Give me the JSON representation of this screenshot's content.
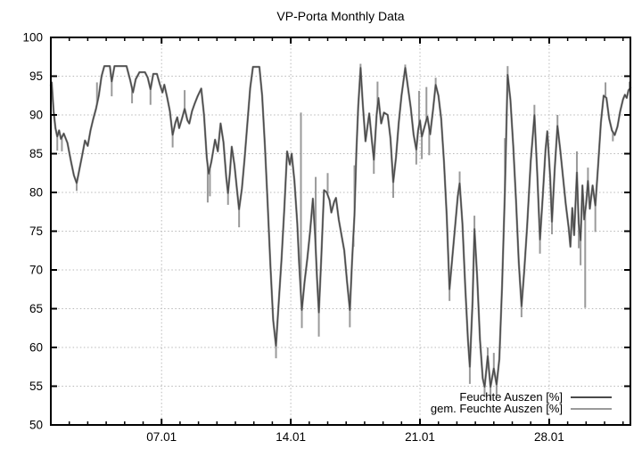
{
  "chart_data": {
    "type": "line",
    "title": "VP-Porta Monthly Data",
    "xlim_days": [
      1,
      32.4
    ],
    "ylim": [
      50,
      100
    ],
    "x_axis": {
      "minor_tick_every_days": 1,
      "major_ticks": [
        {
          "day": 7,
          "label": "07.01"
        },
        {
          "day": 14,
          "label": "14.01"
        },
        {
          "day": 21,
          "label": "21.01"
        },
        {
          "day": 28,
          "label": "28.01"
        }
      ]
    },
    "y_axis": {
      "tick_step": 5,
      "ticks": [
        50,
        55,
        60,
        65,
        70,
        75,
        80,
        85,
        90,
        95,
        100
      ],
      "unit": "%"
    },
    "grid": {
      "shown": true,
      "color": "#b9b9b9",
      "style": "dotted"
    },
    "border_color": "#000000",
    "background_color": "#ffffff",
    "legend": {
      "position": "inside-bottom-right",
      "entries": [
        {
          "label": "Feuchte Auszen [%]",
          "color": "#4a4a4a"
        },
        {
          "label": "gem. Feuchte Auszen [%]",
          "color": "#9a9a9a"
        }
      ]
    },
    "series": [
      {
        "name": "Feuchte Auszen [%]",
        "color": "#4a4a4a",
        "line_width": 1.4,
        "points_day_value": [
          [
            1.0,
            93.8
          ],
          [
            1.05,
            94.2
          ],
          [
            1.15,
            90.5
          ],
          [
            1.25,
            88.3
          ],
          [
            1.35,
            87.2
          ],
          [
            1.45,
            88.0
          ],
          [
            1.55,
            86.9
          ],
          [
            1.7,
            87.6
          ],
          [
            1.9,
            86.4
          ],
          [
            2.1,
            83.9
          ],
          [
            2.25,
            82.2
          ],
          [
            2.4,
            81.2
          ],
          [
            2.55,
            83.0
          ],
          [
            2.7,
            84.8
          ],
          [
            2.85,
            86.7
          ],
          [
            3.0,
            86.0
          ],
          [
            3.15,
            88.0
          ],
          [
            3.3,
            89.5
          ],
          [
            3.45,
            90.8
          ],
          [
            3.6,
            92.5
          ],
          [
            3.75,
            95.0
          ],
          [
            3.9,
            96.3
          ],
          [
            4.2,
            96.3
          ],
          [
            4.3,
            94.3
          ],
          [
            4.45,
            96.3
          ],
          [
            5.1,
            96.3
          ],
          [
            5.3,
            94.5
          ],
          [
            5.45,
            92.9
          ],
          [
            5.6,
            94.6
          ],
          [
            5.8,
            95.5
          ],
          [
            6.1,
            95.5
          ],
          [
            6.25,
            94.8
          ],
          [
            6.4,
            93.3
          ],
          [
            6.55,
            95.3
          ],
          [
            6.75,
            95.3
          ],
          [
            6.9,
            94.0
          ],
          [
            7.05,
            92.9
          ],
          [
            7.15,
            93.9
          ],
          [
            7.3,
            92.3
          ],
          [
            7.45,
            90.5
          ],
          [
            7.6,
            87.4
          ],
          [
            7.75,
            89.0
          ],
          [
            7.85,
            89.7
          ],
          [
            7.95,
            88.3
          ],
          [
            8.1,
            89.5
          ],
          [
            8.25,
            90.8
          ],
          [
            8.4,
            89.3
          ],
          [
            8.5,
            88.9
          ],
          [
            8.65,
            90.5
          ],
          [
            8.8,
            91.5
          ],
          [
            8.95,
            92.4
          ],
          [
            9.15,
            93.4
          ],
          [
            9.3,
            90.0
          ],
          [
            9.45,
            84.5
          ],
          [
            9.55,
            82.4
          ],
          [
            9.7,
            84.0
          ],
          [
            9.9,
            86.8
          ],
          [
            10.05,
            85.3
          ],
          [
            10.2,
            88.9
          ],
          [
            10.35,
            86.5
          ],
          [
            10.5,
            82.0
          ],
          [
            10.6,
            79.9
          ],
          [
            10.7,
            82.5
          ],
          [
            10.8,
            85.9
          ],
          [
            10.95,
            83.5
          ],
          [
            11.1,
            80.0
          ],
          [
            11.2,
            77.8
          ],
          [
            11.35,
            80.5
          ],
          [
            11.5,
            84.5
          ],
          [
            11.65,
            89.0
          ],
          [
            11.8,
            93.5
          ],
          [
            11.95,
            96.2
          ],
          [
            12.3,
            96.2
          ],
          [
            12.45,
            92.5
          ],
          [
            12.6,
            86.0
          ],
          [
            12.75,
            78.5
          ],
          [
            12.9,
            70.5
          ],
          [
            13.05,
            63.5
          ],
          [
            13.2,
            60.2
          ],
          [
            13.35,
            66.0
          ],
          [
            13.5,
            71.5
          ],
          [
            13.65,
            78.0
          ],
          [
            13.8,
            85.3
          ],
          [
            13.95,
            83.6
          ],
          [
            14.05,
            85.0
          ],
          [
            14.2,
            81.5
          ],
          [
            14.35,
            76.0
          ],
          [
            14.45,
            71.0
          ],
          [
            14.6,
            64.8
          ],
          [
            14.75,
            68.5
          ],
          [
            14.9,
            71.5
          ],
          [
            15.05,
            75.0
          ],
          [
            15.2,
            79.2
          ],
          [
            15.32,
            74.5
          ],
          [
            15.42,
            69.0
          ],
          [
            15.52,
            64.5
          ],
          [
            15.65,
            71.5
          ],
          [
            15.8,
            80.3
          ],
          [
            15.95,
            80.0
          ],
          [
            16.1,
            79.0
          ],
          [
            16.2,
            77.4
          ],
          [
            16.35,
            78.8
          ],
          [
            16.45,
            79.3
          ],
          [
            16.6,
            76.5
          ],
          [
            16.75,
            74.5
          ],
          [
            16.9,
            72.5
          ],
          [
            17.05,
            68.5
          ],
          [
            17.2,
            64.8
          ],
          [
            17.32,
            71.0
          ],
          [
            17.45,
            77.0
          ],
          [
            17.55,
            85.0
          ],
          [
            17.65,
            91.0
          ],
          [
            17.78,
            96.1
          ],
          [
            17.9,
            91.5
          ],
          [
            18.05,
            86.6
          ],
          [
            18.25,
            90.2
          ],
          [
            18.4,
            86.5
          ],
          [
            18.5,
            84.2
          ],
          [
            18.65,
            90.0
          ],
          [
            18.75,
            92.2
          ],
          [
            18.9,
            88.9
          ],
          [
            19.05,
            90.3
          ],
          [
            19.25,
            90.0
          ],
          [
            19.4,
            87.0
          ],
          [
            19.55,
            81.3
          ],
          [
            19.7,
            84.5
          ],
          [
            19.85,
            89.0
          ],
          [
            20.0,
            92.5
          ],
          [
            20.2,
            96.1
          ],
          [
            20.35,
            93.5
          ],
          [
            20.5,
            90.9
          ],
          [
            20.65,
            87.5
          ],
          [
            20.8,
            85.5
          ],
          [
            20.9,
            88.0
          ],
          [
            21.0,
            89.3
          ],
          [
            21.1,
            87.2
          ],
          [
            21.25,
            88.5
          ],
          [
            21.4,
            89.8
          ],
          [
            21.55,
            87.5
          ],
          [
            21.7,
            90.5
          ],
          [
            21.85,
            93.9
          ],
          [
            22.0,
            92.5
          ],
          [
            22.15,
            89.5
          ],
          [
            22.3,
            84.0
          ],
          [
            22.45,
            77.0
          ],
          [
            22.6,
            67.5
          ],
          [
            22.75,
            71.5
          ],
          [
            22.9,
            75.5
          ],
          [
            23.05,
            79.5
          ],
          [
            23.15,
            81.2
          ],
          [
            23.3,
            76.0
          ],
          [
            23.45,
            68.0
          ],
          [
            23.6,
            61.0
          ],
          [
            23.7,
            57.5
          ],
          [
            23.85,
            66.0
          ],
          [
            23.95,
            75.3
          ],
          [
            24.1,
            69.0
          ],
          [
            24.25,
            61.0
          ],
          [
            24.4,
            56.0
          ],
          [
            24.5,
            54.9
          ],
          [
            24.67,
            58.9
          ],
          [
            24.82,
            54.9
          ],
          [
            25.0,
            57.3
          ],
          [
            25.15,
            55.2
          ],
          [
            25.3,
            58.5
          ],
          [
            25.45,
            68.0
          ],
          [
            25.6,
            80.0
          ],
          [
            25.75,
            95.2
          ],
          [
            25.9,
            92.0
          ],
          [
            26.05,
            86.0
          ],
          [
            26.2,
            79.0
          ],
          [
            26.35,
            71.0
          ],
          [
            26.5,
            65.3
          ],
          [
            26.65,
            70.0
          ],
          [
            26.8,
            75.5
          ],
          [
            27.0,
            84.0
          ],
          [
            27.2,
            90.0
          ],
          [
            27.35,
            82.5
          ],
          [
            27.5,
            73.9
          ],
          [
            27.65,
            79.5
          ],
          [
            27.8,
            85.5
          ],
          [
            27.9,
            87.9
          ],
          [
            28.05,
            82.0
          ],
          [
            28.15,
            76.2
          ],
          [
            28.3,
            83.0
          ],
          [
            28.45,
            88.6
          ],
          [
            28.6,
            85.5
          ],
          [
            28.75,
            82.0
          ],
          [
            28.9,
            78.5
          ],
          [
            29.05,
            75.5
          ],
          [
            29.15,
            73.0
          ],
          [
            29.25,
            78.0
          ],
          [
            29.35,
            74.5
          ],
          [
            29.5,
            82.6
          ],
          [
            29.6,
            76.0
          ],
          [
            29.7,
            73.8
          ],
          [
            29.8,
            80.9
          ],
          [
            29.9,
            76.5
          ],
          [
            30.0,
            78.5
          ],
          [
            30.1,
            81.5
          ],
          [
            30.2,
            77.9
          ],
          [
            30.35,
            80.9
          ],
          [
            30.5,
            78.3
          ],
          [
            30.65,
            83.5
          ],
          [
            30.8,
            89.0
          ],
          [
            30.95,
            92.5
          ],
          [
            31.1,
            92.2
          ],
          [
            31.25,
            89.5
          ],
          [
            31.4,
            88.0
          ],
          [
            31.55,
            87.4
          ],
          [
            31.7,
            88.5
          ],
          [
            31.85,
            90.5
          ],
          [
            32.0,
            92.0
          ],
          [
            32.1,
            92.6
          ],
          [
            32.2,
            92.2
          ],
          [
            32.3,
            93.2
          ],
          [
            32.4,
            93.5
          ]
        ]
      },
      {
        "name": "gem. Feuchte Auszen [%]",
        "color": "#9a9a9a",
        "line_width": 2.4,
        "follows_series": 0,
        "spikes_day_value": [
          [
            1.35,
            85.4
          ],
          [
            1.6,
            85.3
          ],
          [
            2.4,
            80.2
          ],
          [
            3.5,
            94.2
          ],
          [
            4.3,
            92.4
          ],
          [
            5.4,
            91.5
          ],
          [
            6.4,
            91.3
          ],
          [
            7.6,
            85.8
          ],
          [
            8.25,
            93.2
          ],
          [
            9.5,
            78.7
          ],
          [
            9.62,
            79.5
          ],
          [
            10.6,
            78.4
          ],
          [
            11.2,
            75.5
          ],
          [
            13.2,
            58.6
          ],
          [
            14.55,
            90.3
          ],
          [
            14.6,
            62.5
          ],
          [
            15.35,
            82.0
          ],
          [
            15.52,
            61.4
          ],
          [
            16.0,
            82.5
          ],
          [
            17.2,
            62.6
          ],
          [
            17.4,
            73.0
          ],
          [
            17.45,
            83.5
          ],
          [
            17.78,
            96.6
          ],
          [
            18.5,
            82.4
          ],
          [
            18.7,
            94.3
          ],
          [
            19.55,
            79.3
          ],
          [
            20.2,
            96.5
          ],
          [
            20.8,
            83.6
          ],
          [
            20.95,
            93.1
          ],
          [
            21.1,
            84.3
          ],
          [
            21.35,
            93.6
          ],
          [
            21.5,
            84.8
          ],
          [
            21.85,
            94.8
          ],
          [
            22.6,
            66.0
          ],
          [
            23.15,
            82.7
          ],
          [
            23.7,
            55.3
          ],
          [
            23.95,
            77.0
          ],
          [
            24.5,
            53.6
          ],
          [
            24.67,
            60.0
          ],
          [
            24.82,
            53.2
          ],
          [
            25.0,
            59.3
          ],
          [
            25.15,
            53.8
          ],
          [
            25.6,
            87.0
          ],
          [
            25.75,
            96.3
          ],
          [
            26.5,
            63.9
          ],
          [
            27.2,
            91.3
          ],
          [
            27.5,
            72.1
          ],
          [
            28.15,
            74.6
          ],
          [
            28.45,
            90.0
          ],
          [
            29.5,
            85.3
          ],
          [
            29.6,
            72.8
          ],
          [
            29.7,
            70.6
          ],
          [
            29.95,
            65.1
          ],
          [
            30.1,
            83.2
          ],
          [
            30.5,
            74.9
          ],
          [
            31.05,
            94.2
          ],
          [
            31.45,
            86.6
          ],
          [
            32.35,
            94.3
          ]
        ]
      }
    ]
  }
}
